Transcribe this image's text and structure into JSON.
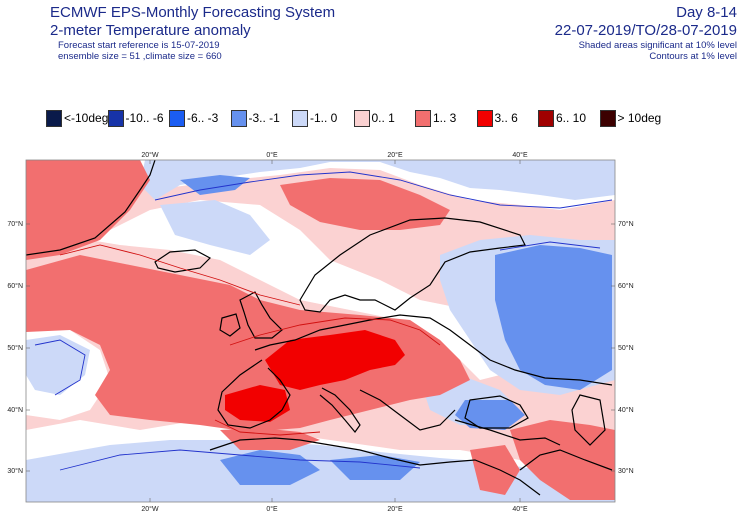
{
  "header": {
    "title": "ECMWF EPS-Monthly Forecasting System",
    "subtitle": "2-meter Temperature anomaly",
    "forecast_start": "Forecast start reference is 15-07-2019",
    "ensemble_info": "ensemble size = 51  ,climate size = 660",
    "day_range": "Day 8-14",
    "date_range": "22-07-2019/TO/28-07-2019",
    "shading_note": "Shaded areas significant at 10% level",
    "contour_note": "Contours at 1% level"
  },
  "legend": [
    {
      "label": "<-10deg",
      "color": "#0a1a4a"
    },
    {
      "label": "-10.. -6",
      "color": "#1733a8"
    },
    {
      "label": "-6.. -3",
      "color": "#1b5df2"
    },
    {
      "label": "-3.. -1",
      "color": "#6691ee"
    },
    {
      "label": "-1.. 0",
      "color": "#ccd9f8"
    },
    {
      "label": "0.. 1",
      "color": "#fbd2d2"
    },
    {
      "label": "1.. 3",
      "color": "#f26f6f"
    },
    {
      "label": "3.. 6",
      "color": "#f20000"
    },
    {
      "label": "6.. 10",
      "color": "#a00000"
    },
    {
      "label": "> 10deg",
      "color": "#3c0000"
    }
  ],
  "map": {
    "lon_labels": [
      "20°W",
      "0°E",
      "20°E",
      "40°E"
    ],
    "lat_labels": [
      "70°N",
      "60°N",
      "50°N",
      "40°N",
      "30°N"
    ],
    "colors": {
      "positive_strong": "#f20000",
      "positive": "#f26f6f",
      "positive_weak": "#fbd2d2",
      "negative_weak": "#ccd9f8",
      "negative": "#6691ee",
      "coast": "#000000",
      "contour_positive": "#d11111",
      "contour_negative": "#2233cc"
    }
  }
}
